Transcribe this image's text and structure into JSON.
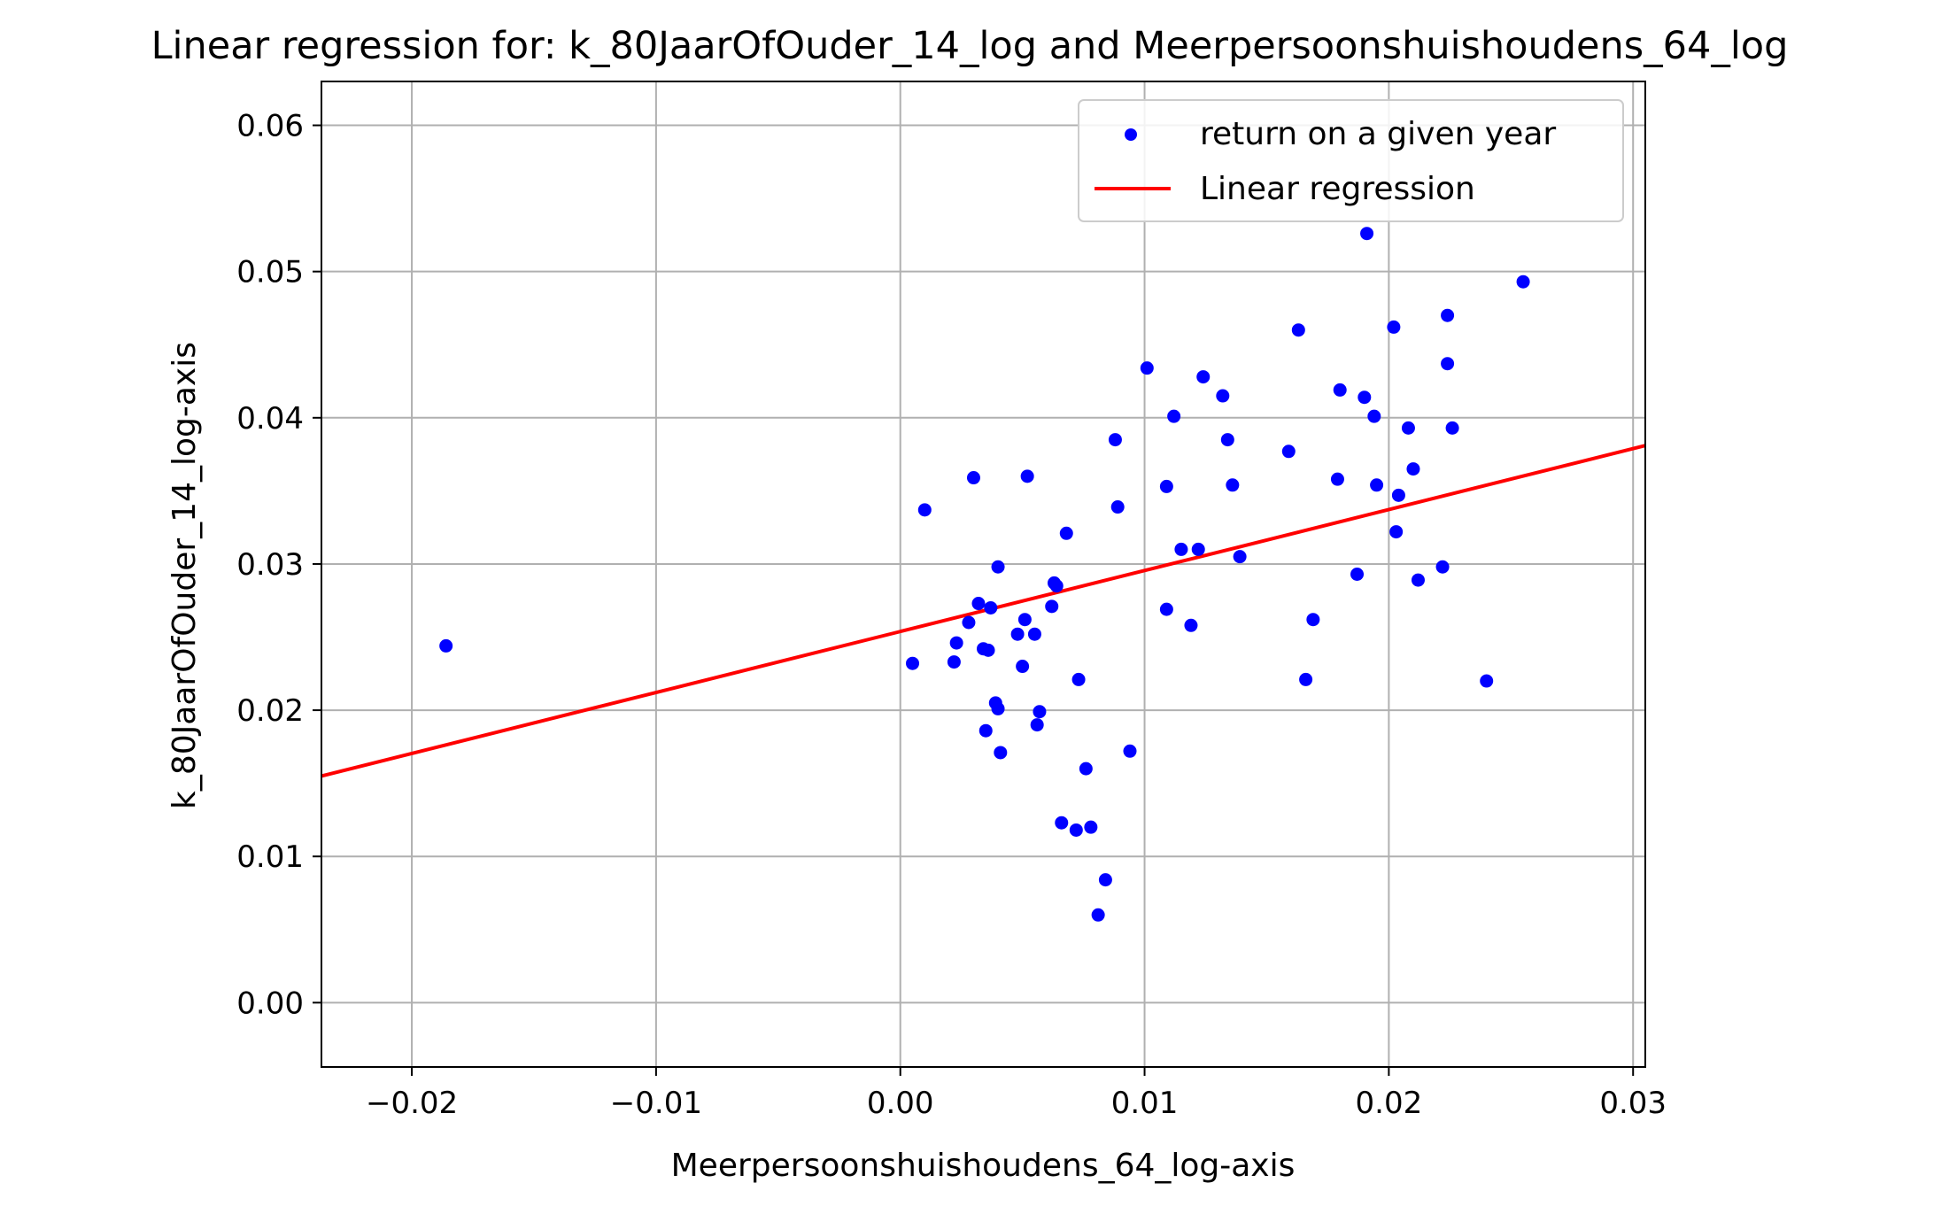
{
  "chart_data": {
    "type": "scatter",
    "title": "Linear regression for: k_80JaarOfOuder_14_log and Meerpersoonshuishoudens_64_log",
    "xlabel": "Meerpersoonshuishoudens_64_log-axis",
    "ylabel": "k_80JaarOfOuder_14_log-axis",
    "xlim": [
      -0.0237,
      0.0305
    ],
    "ylim": [
      -0.0044,
      0.063
    ],
    "xticks": [
      -0.02,
      -0.01,
      0.0,
      0.01,
      0.02,
      0.03
    ],
    "xtick_labels": [
      "−0.02",
      "−0.01",
      "0.00",
      "0.01",
      "0.02",
      "0.03"
    ],
    "yticks": [
      0.0,
      0.01,
      0.02,
      0.03,
      0.04,
      0.05,
      0.06
    ],
    "ytick_labels": [
      "0.00",
      "0.01",
      "0.02",
      "0.03",
      "0.04",
      "0.05",
      "0.06"
    ],
    "grid": true,
    "legend_position": "top-right",
    "colors": {
      "points": "#0000ff",
      "line": "#ff0000",
      "grid": "#b0b0b0"
    },
    "series": [
      {
        "name": "return on a given year",
        "kind": "scatter",
        "points": [
          [
            -0.0186,
            0.0244
          ],
          [
            0.0005,
            0.0232
          ],
          [
            0.001,
            0.0337
          ],
          [
            0.0022,
            0.0233
          ],
          [
            0.0023,
            0.0246
          ],
          [
            0.0028,
            0.026
          ],
          [
            0.003,
            0.0359
          ],
          [
            0.0032,
            0.0273
          ],
          [
            0.0034,
            0.0242
          ],
          [
            0.0035,
            0.0186
          ],
          [
            0.0036,
            0.0241
          ],
          [
            0.0037,
            0.027
          ],
          [
            0.0039,
            0.0205
          ],
          [
            0.004,
            0.0201
          ],
          [
            0.004,
            0.0298
          ],
          [
            0.0041,
            0.0171
          ],
          [
            0.0048,
            0.0252
          ],
          [
            0.005,
            0.023
          ],
          [
            0.0051,
            0.0262
          ],
          [
            0.0052,
            0.036
          ],
          [
            0.0055,
            0.0252
          ],
          [
            0.0056,
            0.019
          ],
          [
            0.0057,
            0.0199
          ],
          [
            0.0062,
            0.0271
          ],
          [
            0.0063,
            0.0287
          ],
          [
            0.0064,
            0.0285
          ],
          [
            0.0066,
            0.0123
          ],
          [
            0.0068,
            0.0321
          ],
          [
            0.0072,
            0.0118
          ],
          [
            0.0073,
            0.0221
          ],
          [
            0.0076,
            0.016
          ],
          [
            0.0078,
            0.012
          ],
          [
            0.0081,
            0.006
          ],
          [
            0.0084,
            0.0084
          ],
          [
            0.0088,
            0.0385
          ],
          [
            0.0089,
            0.0339
          ],
          [
            0.0094,
            0.0172
          ],
          [
            0.0101,
            0.0434
          ],
          [
            0.0109,
            0.0353
          ],
          [
            0.0109,
            0.0269
          ],
          [
            0.0112,
            0.0401
          ],
          [
            0.0115,
            0.031
          ],
          [
            0.0119,
            0.0258
          ],
          [
            0.0122,
            0.031
          ],
          [
            0.0124,
            0.0428
          ],
          [
            0.0132,
            0.0415
          ],
          [
            0.0134,
            0.0385
          ],
          [
            0.0136,
            0.0354
          ],
          [
            0.0139,
            0.0305
          ],
          [
            0.0159,
            0.0377
          ],
          [
            0.0163,
            0.046
          ],
          [
            0.0166,
            0.0221
          ],
          [
            0.0169,
            0.0262
          ],
          [
            0.0179,
            0.0358
          ],
          [
            0.018,
            0.0419
          ],
          [
            0.0187,
            0.0293
          ],
          [
            0.019,
            0.0414
          ],
          [
            0.0191,
            0.0526
          ],
          [
            0.0194,
            0.0401
          ],
          [
            0.0195,
            0.0354
          ],
          [
            0.0202,
            0.0462
          ],
          [
            0.0203,
            0.0322
          ],
          [
            0.0204,
            0.0347
          ],
          [
            0.0208,
            0.0393
          ],
          [
            0.021,
            0.0365
          ],
          [
            0.0212,
            0.0289
          ],
          [
            0.0222,
            0.0298
          ],
          [
            0.0224,
            0.047
          ],
          [
            0.0224,
            0.0437
          ],
          [
            0.0226,
            0.0393
          ],
          [
            0.024,
            0.022
          ],
          [
            0.0255,
            0.0493
          ]
        ]
      },
      {
        "name": "Linear regression",
        "kind": "line",
        "points": [
          [
            -0.0237,
            0.0155
          ],
          [
            0.0305,
            0.0381
          ]
        ]
      }
    ]
  }
}
